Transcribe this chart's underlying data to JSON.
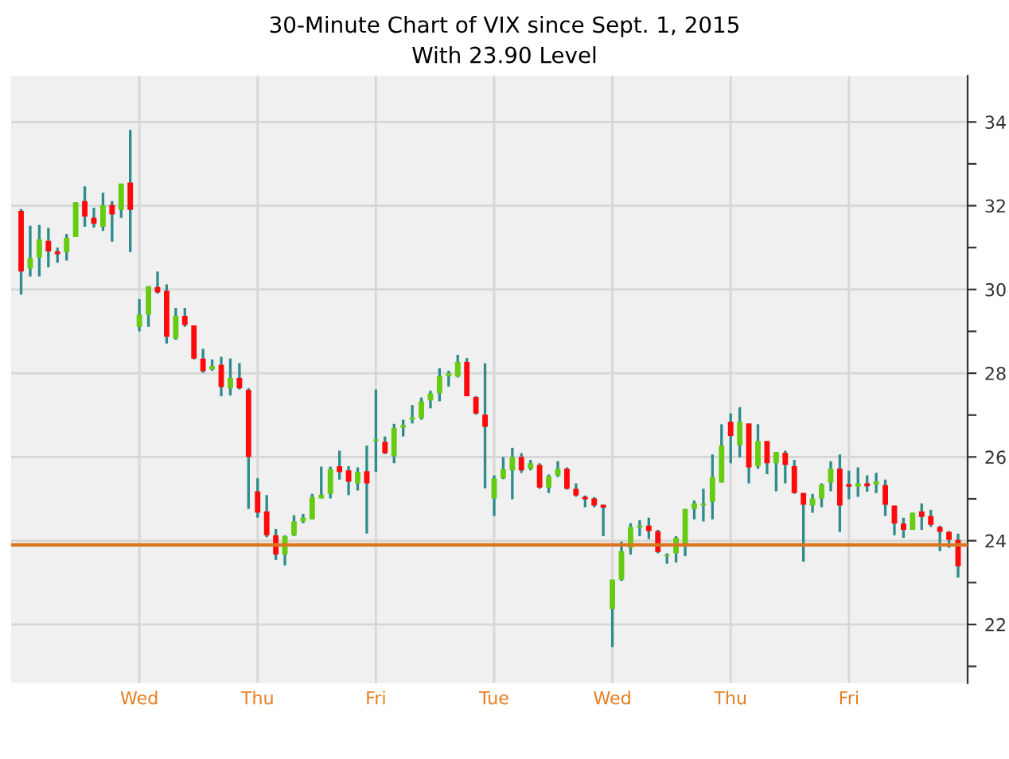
{
  "chart_data": {
    "type": "candlestick",
    "title": "30-Minute Chart of VIX since Sept. 1, 2015",
    "subtitle": "With 23.90 Level",
    "categories": [
      null,
      null,
      null,
      null,
      null,
      null,
      null,
      null,
      null,
      null,
      null,
      null,
      null,
      "Wed",
      null,
      null,
      null,
      null,
      null,
      null,
      null,
      null,
      null,
      null,
      null,
      null,
      "Thu",
      null,
      null,
      null,
      null,
      null,
      null,
      null,
      null,
      null,
      null,
      null,
      null,
      "Fri",
      null,
      null,
      null,
      null,
      null,
      null,
      null,
      null,
      null,
      null,
      null,
      null,
      "Tue",
      null,
      null,
      null,
      null,
      null,
      null,
      null,
      null,
      null,
      null,
      null,
      null,
      "Wed",
      null,
      null,
      null,
      null,
      null,
      null,
      null,
      null,
      null,
      null,
      null,
      null,
      "Thu",
      null,
      null,
      null,
      null,
      null,
      null,
      null,
      null,
      null,
      null,
      null,
      null,
      "Fri",
      null,
      null,
      null,
      null,
      null,
      null,
      null,
      null,
      null,
      null,
      null,
      null
    ],
    "ohlc": [
      [
        31.88,
        31.92,
        29.88,
        30.43
      ],
      [
        30.5,
        31.52,
        30.31,
        30.75
      ],
      [
        30.76,
        31.54,
        30.31,
        31.2
      ],
      [
        31.16,
        31.47,
        30.53,
        30.91
      ],
      [
        30.91,
        31.0,
        30.64,
        30.84
      ],
      [
        30.89,
        31.32,
        30.69,
        31.23
      ],
      [
        31.25,
        32.08,
        31.25,
        32.08
      ],
      [
        32.11,
        32.46,
        31.5,
        31.74
      ],
      [
        31.71,
        31.95,
        31.48,
        31.57
      ],
      [
        31.5,
        32.31,
        31.4,
        32.01
      ],
      [
        32.02,
        32.11,
        31.14,
        31.79
      ],
      [
        31.9,
        32.53,
        31.71,
        32.53
      ],
      [
        32.55,
        33.81,
        30.89,
        31.9
      ],
      [
        29.11,
        29.77,
        29.0,
        29.4
      ],
      [
        29.4,
        30.08,
        29.11,
        30.08
      ],
      [
        30.06,
        30.43,
        29.9,
        29.93
      ],
      [
        29.97,
        30.12,
        28.71,
        28.87
      ],
      [
        28.83,
        29.56,
        28.8,
        29.37
      ],
      [
        29.37,
        29.56,
        29.11,
        29.15
      ],
      [
        29.14,
        29.14,
        28.33,
        28.35
      ],
      [
        28.35,
        28.58,
        28.01,
        28.05
      ],
      [
        28.09,
        28.33,
        28.06,
        28.17
      ],
      [
        28.2,
        28.39,
        27.45,
        27.67
      ],
      [
        27.64,
        28.35,
        27.47,
        27.89
      ],
      [
        27.89,
        28.24,
        27.61,
        27.64
      ],
      [
        27.6,
        27.64,
        24.76,
        26.0
      ],
      [
        25.18,
        25.49,
        24.55,
        24.67
      ],
      [
        24.7,
        25.09,
        24.08,
        24.13
      ],
      [
        24.13,
        24.28,
        23.54,
        23.67
      ],
      [
        23.67,
        24.13,
        23.41,
        24.11
      ],
      [
        24.13,
        24.61,
        24.11,
        24.46
      ],
      [
        24.46,
        24.64,
        24.42,
        24.55
      ],
      [
        24.51,
        25.12,
        24.51,
        25.04
      ],
      [
        25.01,
        25.77,
        25.01,
        25.1
      ],
      [
        25.12,
        25.77,
        25.01,
        25.71
      ],
      [
        25.78,
        26.15,
        25.46,
        25.64
      ],
      [
        25.68,
        25.78,
        25.09,
        25.41
      ],
      [
        25.37,
        25.75,
        25.2,
        25.64
      ],
      [
        25.66,
        26.27,
        24.17,
        25.37
      ],
      [
        26.38,
        27.61,
        25.64,
        26.42
      ],
      [
        26.36,
        26.49,
        26.07,
        26.09
      ],
      [
        26.02,
        26.79,
        25.85,
        26.69
      ],
      [
        26.7,
        26.89,
        26.49,
        26.76
      ],
      [
        26.89,
        27.24,
        26.8,
        26.95
      ],
      [
        26.93,
        27.42,
        26.89,
        27.33
      ],
      [
        27.35,
        27.58,
        27.16,
        27.52
      ],
      [
        27.52,
        28.12,
        27.33,
        27.93
      ],
      [
        27.93,
        28.06,
        27.68,
        28.0
      ],
      [
        27.92,
        28.44,
        27.9,
        28.27
      ],
      [
        28.27,
        28.36,
        27.45,
        27.45
      ],
      [
        27.43,
        27.45,
        27.01,
        27.04
      ],
      [
        27.01,
        28.24,
        25.25,
        26.72
      ],
      [
        25.01,
        25.56,
        24.59,
        25.49
      ],
      [
        25.49,
        26.0,
        25.47,
        25.71
      ],
      [
        25.68,
        26.22,
        24.99,
        26.0
      ],
      [
        26.0,
        26.09,
        25.62,
        25.68
      ],
      [
        25.72,
        25.93,
        25.68,
        25.85
      ],
      [
        25.81,
        25.85,
        25.24,
        25.27
      ],
      [
        25.27,
        25.58,
        25.14,
        25.54
      ],
      [
        25.56,
        25.9,
        25.52,
        25.72
      ],
      [
        25.72,
        25.75,
        25.22,
        25.24
      ],
      [
        25.24,
        25.37,
        25.05,
        25.08
      ],
      [
        25.05,
        25.08,
        24.8,
        24.99
      ],
      [
        25.01,
        25.04,
        24.8,
        24.84
      ],
      [
        24.86,
        24.86,
        24.11,
        24.79
      ],
      [
        22.37,
        23.07,
        21.46,
        23.07
      ],
      [
        23.07,
        23.98,
        23.04,
        23.75
      ],
      [
        23.83,
        24.42,
        23.67,
        24.33
      ],
      [
        24.32,
        24.49,
        24.11,
        24.36
      ],
      [
        24.36,
        24.55,
        24.04,
        24.23
      ],
      [
        24.23,
        24.26,
        23.7,
        23.73
      ],
      [
        23.63,
        23.7,
        23.45,
        23.66
      ],
      [
        23.7,
        24.11,
        23.48,
        24.07
      ],
      [
        23.92,
        24.76,
        23.63,
        24.76
      ],
      [
        24.76,
        24.96,
        24.51,
        24.89
      ],
      [
        24.84,
        25.24,
        24.46,
        24.89
      ],
      [
        24.93,
        26.06,
        24.51,
        25.52
      ],
      [
        25.39,
        26.78,
        25.39,
        26.27
      ],
      [
        26.84,
        27.04,
        25.85,
        26.5
      ],
      [
        26.28,
        27.19,
        25.99,
        26.84
      ],
      [
        26.8,
        26.8,
        25.37,
        25.75
      ],
      [
        25.78,
        26.78,
        25.72,
        26.38
      ],
      [
        26.38,
        26.38,
        25.59,
        25.85
      ],
      [
        25.85,
        26.12,
        25.18,
        26.12
      ],
      [
        26.1,
        26.15,
        25.37,
        25.81
      ],
      [
        25.78,
        25.93,
        25.12,
        25.14
      ],
      [
        25.14,
        25.14,
        23.5,
        24.86
      ],
      [
        24.84,
        25.12,
        24.67,
        25.01
      ],
      [
        25.01,
        25.37,
        24.8,
        25.34
      ],
      [
        25.39,
        25.9,
        25.18,
        25.72
      ],
      [
        25.72,
        26.06,
        24.21,
        24.84
      ],
      [
        25.35,
        25.67,
        24.99,
        25.29
      ],
      [
        25.29,
        25.75,
        25.05,
        25.37
      ],
      [
        25.37,
        25.56,
        25.17,
        25.3
      ],
      [
        25.34,
        25.62,
        25.14,
        25.42
      ],
      [
        25.33,
        25.46,
        24.59,
        24.86
      ],
      [
        24.84,
        24.84,
        24.13,
        24.41
      ],
      [
        24.41,
        24.55,
        24.07,
        24.26
      ],
      [
        24.26,
        24.67,
        24.26,
        24.67
      ],
      [
        24.7,
        24.89,
        24.26,
        24.57
      ],
      [
        24.59,
        24.74,
        24.33,
        24.38
      ],
      [
        24.33,
        24.36,
        23.75,
        24.21
      ],
      [
        24.21,
        24.23,
        23.83,
        24.02
      ],
      [
        24.02,
        24.17,
        23.12,
        23.39
      ]
    ],
    "ylim": [
      20.6,
      35.1
    ],
    "yticks": [
      {
        "value": 21,
        "label": null
      },
      22,
      {
        "value": 23,
        "label": null
      },
      24,
      {
        "value": 25,
        "label": null
      },
      26,
      {
        "value": 27,
        "label": null
      },
      28,
      {
        "value": 29,
        "label": null
      },
      30,
      {
        "value": 31,
        "label": null
      },
      32,
      {
        "value": 33,
        "label": null
      },
      34
    ],
    "grid": true,
    "ref_lines": [
      {
        "axis": "y",
        "value": 23.9,
        "color": "#d9741f"
      }
    ]
  }
}
